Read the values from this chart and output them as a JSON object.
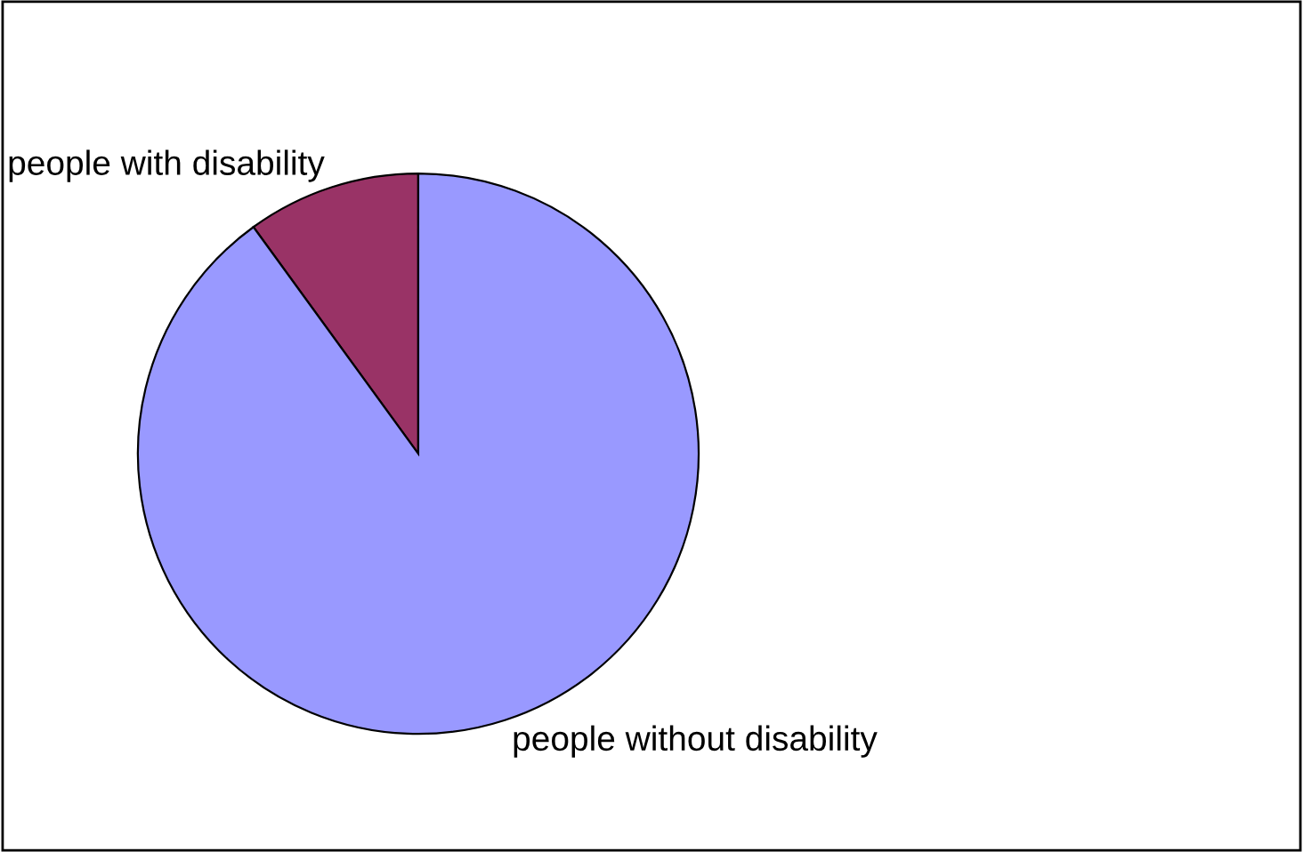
{
  "chart_data": {
    "type": "pie",
    "categories": [
      "people with disability",
      "people without disability"
    ],
    "values": [
      10,
      90
    ],
    "colors": [
      "#993366",
      "#9999ff"
    ]
  }
}
